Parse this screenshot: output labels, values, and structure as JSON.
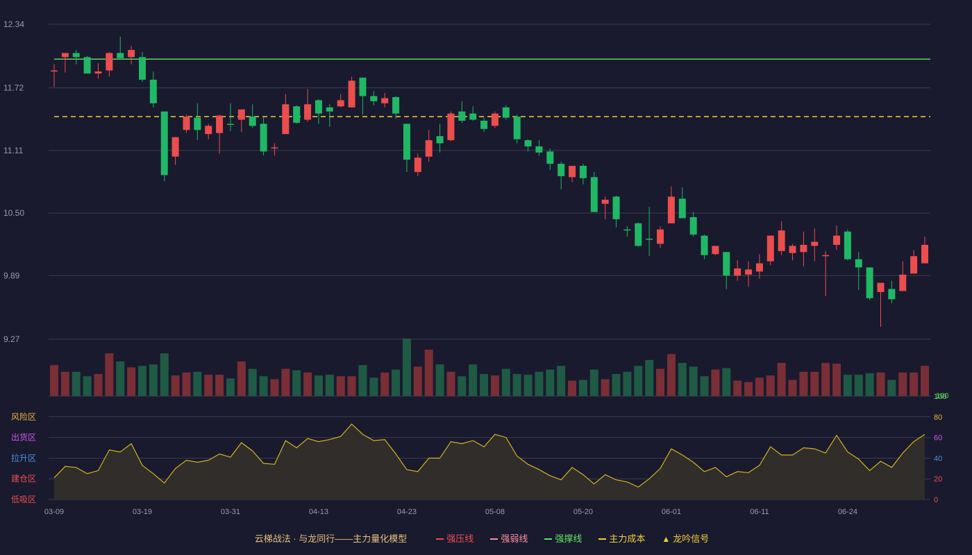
{
  "chart_data": {
    "type": "candlestick",
    "x_labels": [
      "03-09",
      "03-19",
      "03-31",
      "04-13",
      "04-23",
      "05-08",
      "05-20",
      "06-01",
      "06-11",
      "06-24"
    ],
    "x_label_indices": [
      0,
      8,
      16,
      24,
      32,
      40,
      48,
      56,
      64,
      72
    ],
    "price_axis": {
      "ticks": [
        "12.34",
        "11.72",
        "11.11",
        "10.50",
        "9.89",
        "9.27"
      ],
      "min": 9.27,
      "max": 12.34
    },
    "lines": {
      "strong_support": 12.0,
      "main_cost": 11.44
    },
    "candles": [
      [
        11.88,
        11.89,
        11.95,
        11.73
      ],
      [
        12.02,
        12.06,
        12.06,
        11.87
      ],
      [
        12.06,
        12.02,
        12.09,
        11.95
      ],
      [
        12.02,
        11.86,
        12.03,
        11.86
      ],
      [
        11.86,
        11.88,
        11.96,
        11.81
      ],
      [
        11.89,
        12.06,
        12.07,
        11.83
      ],
      [
        12.06,
        12.01,
        12.22,
        12.01
      ],
      [
        12.02,
        12.09,
        12.13,
        11.95
      ],
      [
        12.02,
        11.8,
        12.07,
        11.78
      ],
      [
        11.8,
        11.57,
        11.88,
        11.53
      ],
      [
        11.49,
        10.87,
        11.49,
        10.81
      ],
      [
        11.05,
        11.24,
        11.24,
        10.97
      ],
      [
        11.31,
        11.44,
        11.46,
        11.28
      ],
      [
        11.43,
        11.31,
        11.57,
        11.21
      ],
      [
        11.27,
        11.35,
        11.37,
        11.22
      ],
      [
        11.28,
        11.45,
        11.46,
        11.08
      ],
      [
        11.37,
        11.36,
        11.57,
        11.3
      ],
      [
        11.41,
        11.51,
        11.51,
        11.29
      ],
      [
        11.44,
        11.35,
        11.56,
        11.33
      ],
      [
        11.37,
        11.1,
        11.44,
        11.06
      ],
      [
        11.13,
        11.14,
        11.18,
        11.06
      ],
      [
        11.27,
        11.56,
        11.66,
        11.27
      ],
      [
        11.54,
        11.38,
        11.55,
        11.37
      ],
      [
        11.41,
        11.56,
        11.71,
        11.39
      ],
      [
        11.6,
        11.47,
        11.61,
        11.37
      ],
      [
        11.53,
        11.49,
        11.56,
        11.34
      ],
      [
        11.54,
        11.6,
        11.66,
        11.53
      ],
      [
        11.53,
        11.79,
        11.83,
        11.53
      ],
      [
        11.82,
        11.64,
        11.82,
        11.46
      ],
      [
        11.64,
        11.59,
        11.69,
        11.55
      ],
      [
        11.57,
        11.62,
        11.67,
        11.53
      ],
      [
        11.63,
        11.47,
        11.64,
        11.42
      ],
      [
        11.37,
        11.02,
        11.37,
        10.9
      ],
      [
        10.9,
        11.04,
        11.08,
        10.86
      ],
      [
        11.05,
        11.21,
        11.31,
        11.0
      ],
      [
        11.25,
        11.18,
        11.37,
        11.09
      ],
      [
        11.21,
        11.47,
        11.49,
        11.2
      ],
      [
        11.49,
        11.4,
        11.59,
        11.38
      ],
      [
        11.47,
        11.41,
        11.54,
        11.4
      ],
      [
        11.4,
        11.32,
        11.43,
        11.29
      ],
      [
        11.35,
        11.47,
        11.49,
        11.33
      ],
      [
        11.53,
        11.43,
        11.55,
        11.41
      ],
      [
        11.44,
        11.22,
        11.46,
        11.18
      ],
      [
        11.21,
        11.15,
        11.22,
        11.1
      ],
      [
        11.15,
        11.09,
        11.21,
        11.06
      ],
      [
        11.1,
        10.98,
        11.13,
        10.92
      ],
      [
        10.98,
        10.86,
        11.0,
        10.73
      ],
      [
        10.85,
        10.96,
        10.96,
        10.8
      ],
      [
        10.96,
        10.84,
        10.98,
        10.78
      ],
      [
        10.85,
        10.51,
        10.9,
        10.51
      ],
      [
        10.59,
        10.63,
        10.66,
        10.44
      ],
      [
        10.66,
        10.44,
        10.67,
        10.36
      ],
      [
        10.34,
        10.33,
        10.37,
        10.27
      ],
      [
        10.4,
        10.18,
        10.41,
        10.17
      ],
      [
        10.25,
        10.24,
        10.56,
        10.08
      ],
      [
        10.2,
        10.34,
        10.37,
        10.16
      ],
      [
        10.4,
        10.66,
        10.76,
        10.4
      ],
      [
        10.64,
        10.45,
        10.75,
        10.45
      ],
      [
        10.46,
        10.29,
        10.51,
        10.27
      ],
      [
        10.28,
        10.09,
        10.29,
        10.05
      ],
      [
        10.1,
        10.18,
        10.18,
        10.09
      ],
      [
        10.12,
        9.89,
        10.12,
        9.76
      ],
      [
        9.89,
        9.96,
        10.04,
        9.84
      ],
      [
        9.9,
        9.95,
        10.03,
        9.78
      ],
      [
        9.93,
        10.01,
        10.1,
        9.86
      ],
      [
        10.03,
        10.28,
        10.28,
        9.99
      ],
      [
        10.13,
        10.33,
        10.42,
        10.09
      ],
      [
        10.11,
        10.18,
        10.2,
        10.04
      ],
      [
        10.12,
        10.19,
        10.32,
        9.98
      ],
      [
        10.18,
        10.22,
        10.35,
        10.03
      ],
      [
        10.08,
        10.09,
        10.13,
        9.69
      ],
      [
        10.19,
        10.28,
        10.38,
        10.14
      ],
      [
        10.32,
        10.05,
        10.34,
        10.04
      ],
      [
        10.05,
        9.97,
        10.12,
        9.75
      ],
      [
        9.97,
        9.67,
        9.97,
        9.65
      ],
      [
        9.73,
        9.82,
        9.82,
        9.39
      ],
      [
        9.76,
        9.66,
        9.84,
        9.62
      ],
      [
        9.74,
        9.9,
        10.03,
        9.74
      ],
      [
        9.91,
        10.08,
        10.14,
        9.91
      ],
      [
        10.01,
        10.19,
        10.27,
        10.01
      ]
    ],
    "volume": [
      0.42,
      0.33,
      0.33,
      0.27,
      0.3,
      0.58,
      0.47,
      0.39,
      0.41,
      0.43,
      0.58,
      0.28,
      0.32,
      0.33,
      0.29,
      0.29,
      0.24,
      0.47,
      0.37,
      0.27,
      0.23,
      0.37,
      0.35,
      0.32,
      0.28,
      0.29,
      0.27,
      0.27,
      0.42,
      0.25,
      0.32,
      0.36,
      0.78,
      0.4,
      0.63,
      0.43,
      0.33,
      0.27,
      0.43,
      0.3,
      0.28,
      0.37,
      0.3,
      0.29,
      0.33,
      0.36,
      0.41,
      0.21,
      0.22,
      0.36,
      0.23,
      0.3,
      0.33,
      0.41,
      0.49,
      0.37,
      0.57,
      0.45,
      0.4,
      0.27,
      0.36,
      0.38,
      0.21,
      0.19,
      0.25,
      0.28,
      0.45,
      0.22,
      0.33,
      0.33,
      0.45,
      0.44,
      0.29,
      0.29,
      0.31,
      0.32,
      0.22,
      0.32,
      0.32,
      0.41
    ],
    "volume_labels": {
      "top": "100"
    },
    "indicator": {
      "zones": [
        "风险区",
        "出货区",
        "拉升区",
        "建仓区",
        "低吸区"
      ],
      "zone_colors": [
        "#e7b43c",
        "#cf55e8",
        "#4f8dd9",
        "#ec4d4d",
        "#ec4d4d"
      ],
      "right_ticks": [
        "100",
        "80",
        "60",
        "40",
        "20",
        "0"
      ],
      "right_tick_colors": [
        "#5fd45f",
        "#e7b43c",
        "#cf55e8",
        "#4f8dd9",
        "#ec4d4d",
        "#ec4d4d"
      ],
      "values": [
        21,
        32,
        31,
        25,
        28,
        48,
        46,
        54,
        33,
        25,
        16,
        30,
        38,
        36,
        38,
        44,
        41,
        55,
        47,
        35,
        34,
        57,
        50,
        59,
        56,
        58,
        61,
        73,
        63,
        57,
        58,
        44,
        29,
        27,
        40,
        40,
        56,
        54,
        57,
        51,
        63,
        60,
        42,
        34,
        29,
        23,
        19,
        31,
        24,
        15,
        24,
        19,
        17,
        12,
        20,
        30,
        49,
        43,
        36,
        27,
        31,
        22,
        27,
        26,
        33,
        51,
        43,
        43,
        50,
        49,
        45,
        62,
        46,
        39,
        28,
        37,
        31,
        45,
        56,
        63
      ]
    },
    "legend": [
      {
        "label": "云梯战法 · 与龙同行——主力量化模型",
        "kind": "title"
      },
      {
        "label": "强压线",
        "color": "#ec4d4d",
        "kind": "solid"
      },
      {
        "label": "强弱线",
        "color": "#ff8fa3",
        "kind": "dashed"
      },
      {
        "label": "强撑线",
        "color": "#5fe65f",
        "kind": "solid"
      },
      {
        "label": "主力成本",
        "color": "#f2d13a",
        "kind": "dashed"
      },
      {
        "label": "龙吟信号",
        "color": "#f2d13a",
        "kind": "triangle"
      }
    ]
  },
  "colors": {
    "up": "#ec4d4d",
    "down": "#20b865",
    "vol_up": "#7a2e36",
    "vol_down": "#1f5a45",
    "support_line": "#5fd45f",
    "cost_line": "#f2d13a",
    "indicator_line": "#d6b21e",
    "indicator_fill": "#302d2a",
    "grid": "#3a3c50",
    "axis_text": "#9a9ca8"
  }
}
